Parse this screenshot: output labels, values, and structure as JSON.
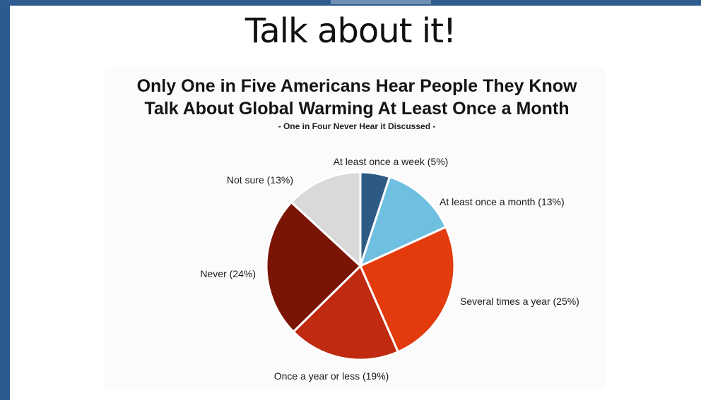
{
  "slide": {
    "title": "Talk about it!"
  },
  "chart_data": {
    "type": "pie",
    "title": "Only One in Five Americans Hear People They Know\nTalk About Global Warming At Least Once a Month",
    "subtitle": "- One in Four Never Hear it Discussed -",
    "unit": "%",
    "slices": [
      {
        "label": "At least once a week (5%)",
        "value": 5,
        "color": "#2c5a83"
      },
      {
        "label": "At least once a month (13%)",
        "value": 13,
        "color": "#6fc0e0"
      },
      {
        "label": "Several times a year (25%)",
        "value": 25,
        "color": "#e33b0d"
      },
      {
        "label": "Once a year or less (19%)",
        "value": 19,
        "color": "#bf2a10"
      },
      {
        "label": "Never (24%)",
        "value": 24,
        "color": "#7a1404"
      },
      {
        "label": "Not sure (13%)",
        "value": 13,
        "color": "#d9d9d9"
      }
    ]
  },
  "colors": {
    "frame": "#2d5a8e",
    "slide_background": "#ffffff"
  }
}
